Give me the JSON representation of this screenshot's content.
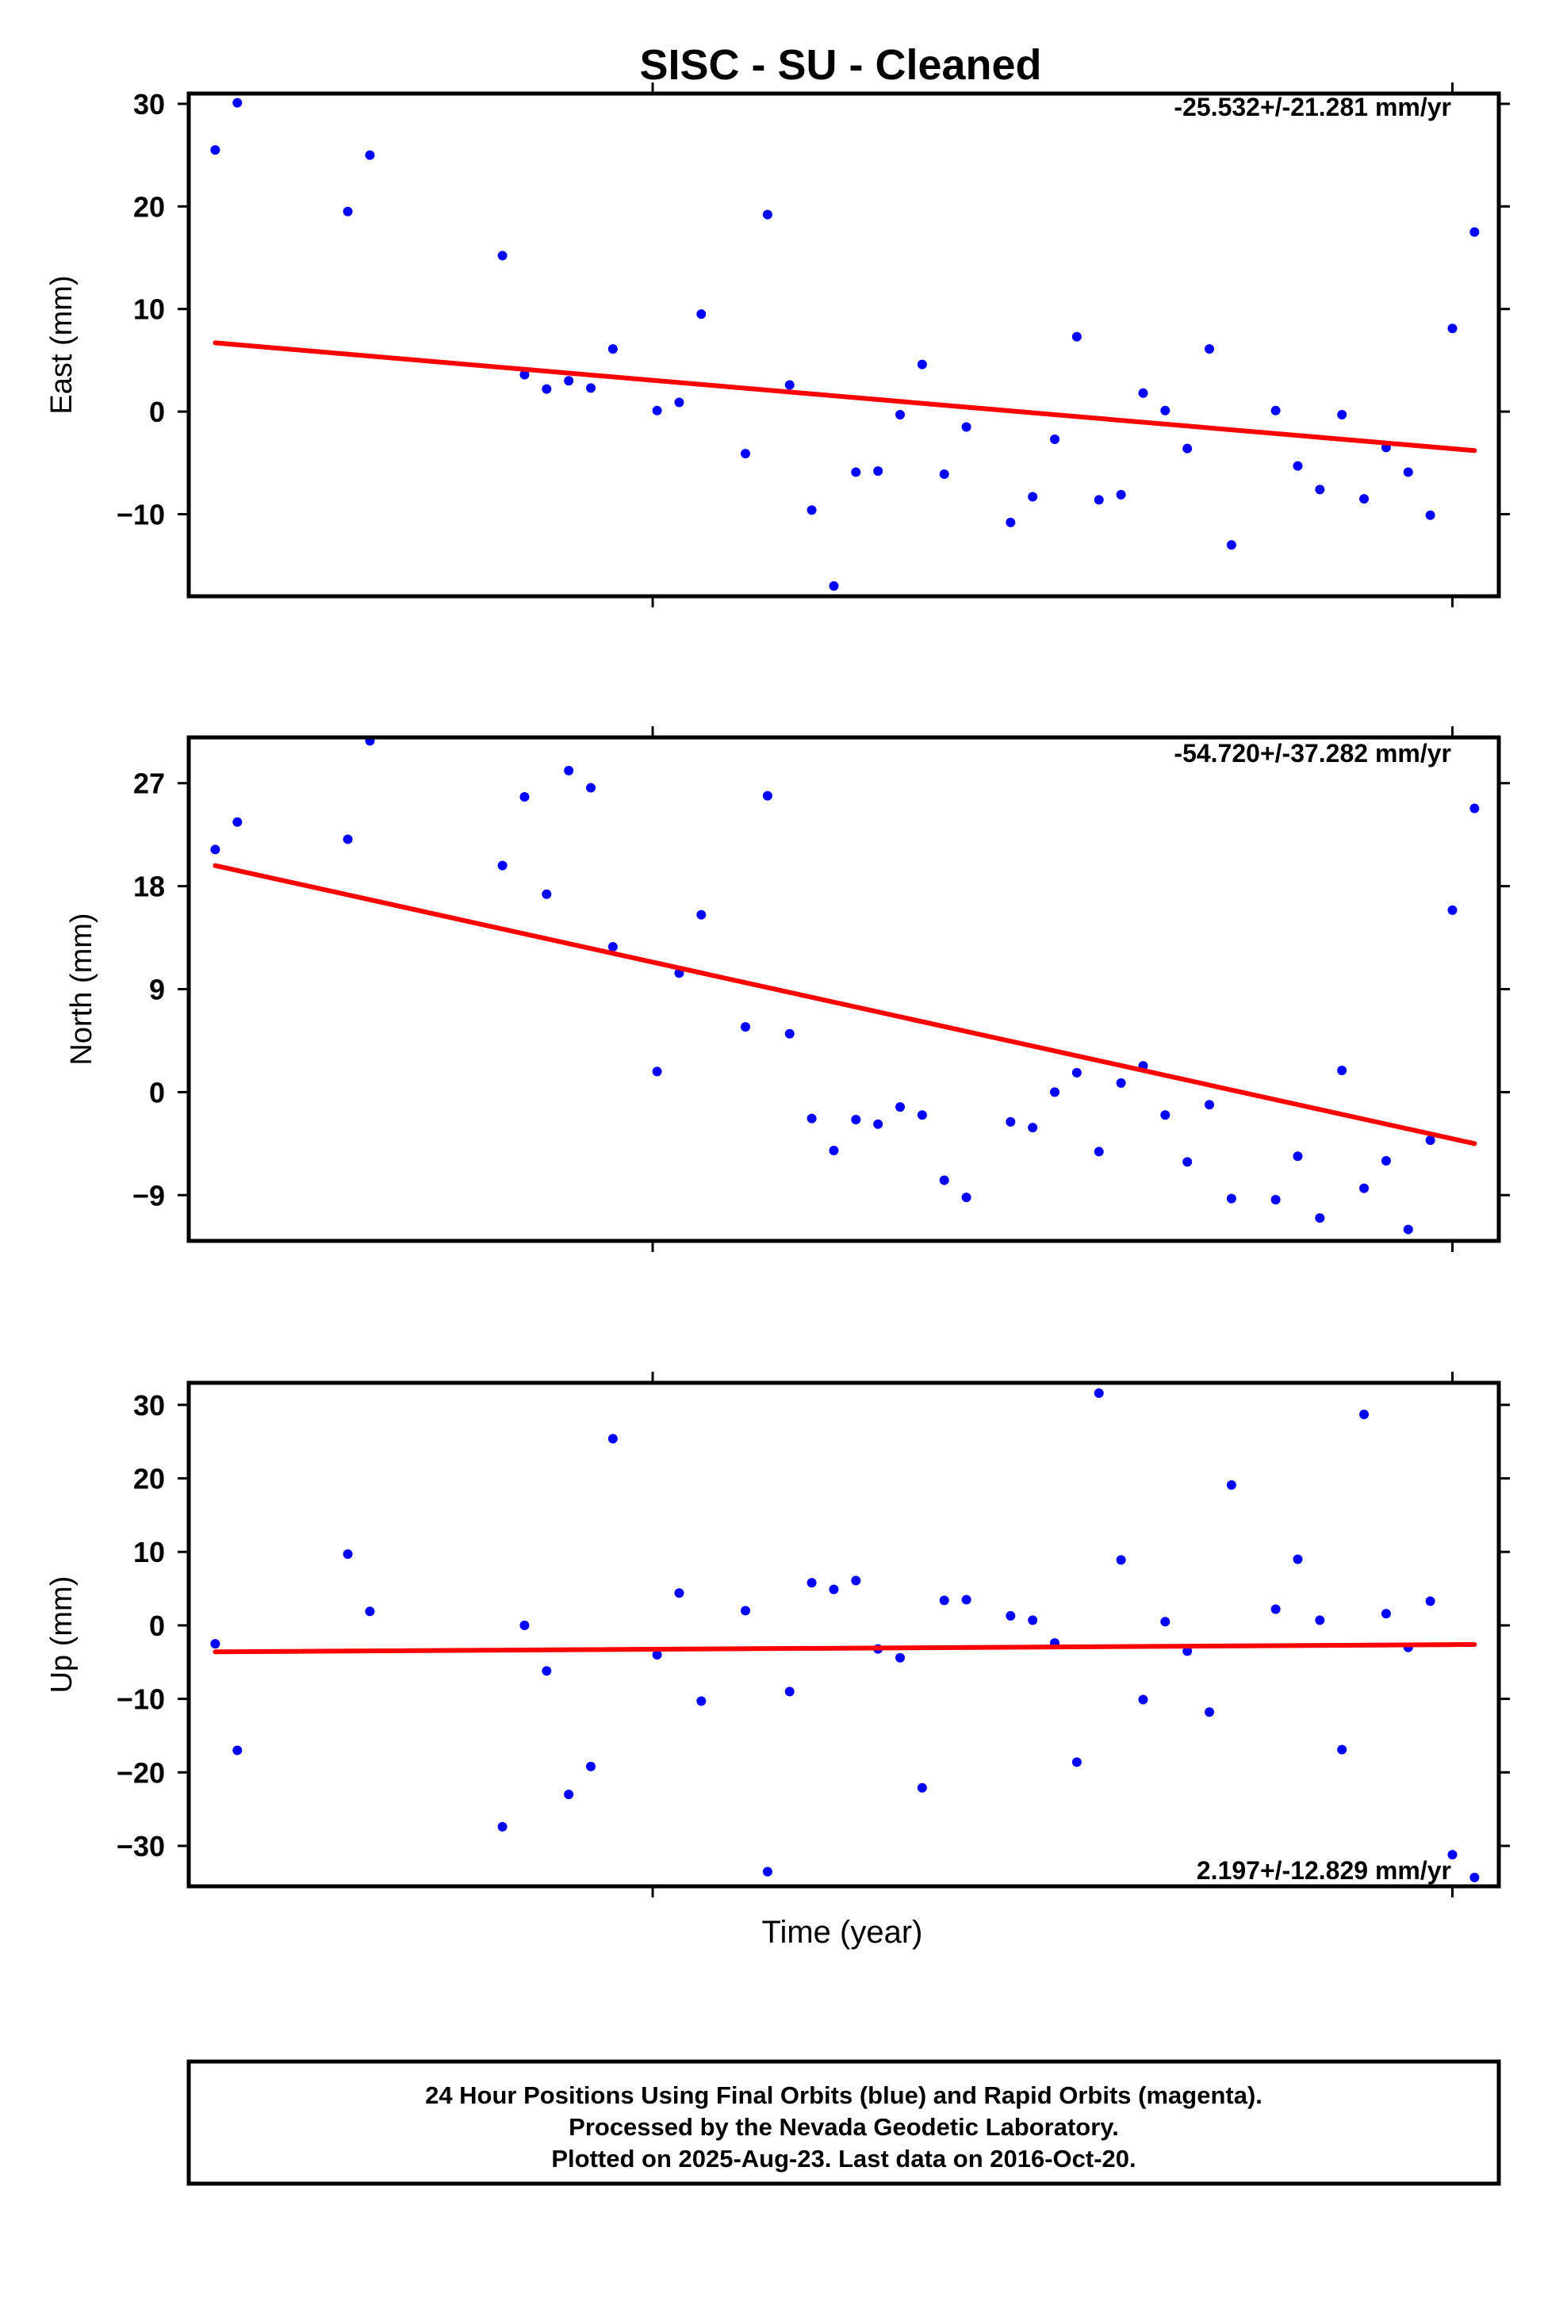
{
  "title": "SISC  - SU - Cleaned",
  "colors": {
    "points": "#0000ff",
    "trend": "#ff0000",
    "frame": "#000000"
  },
  "footer": {
    "lines": [
      "24 Hour Positions Using Final Orbits (blue) and Rapid Orbits (magenta).",
      "Processed by the Nevada Geodetic Laboratory.",
      "Plotted on 2025-Aug-23. Last data on 2016-Oct-20."
    ]
  },
  "chart_data": [
    {
      "type": "scatter",
      "ylabel": "East (mm)",
      "xlabel": "",
      "ylim": [
        -18,
        31
      ],
      "yticks": [
        30,
        20,
        10,
        0,
        -10
      ],
      "ytick_labels": [
        "30",
        "20",
        "10",
        "0",
        "−10"
      ],
      "rate_label": "-25.532+/-21.281 mm/yr",
      "x": [
        0,
        1,
        6,
        7,
        13,
        14,
        15,
        16,
        17,
        18,
        20,
        21,
        22,
        24,
        25,
        26,
        27,
        28,
        29,
        30,
        31,
        32,
        33,
        34,
        36,
        37,
        38,
        39,
        40,
        41,
        42,
        43,
        44,
        45,
        46,
        48,
        49,
        50,
        51,
        52,
        53,
        54,
        55,
        56,
        57
      ],
      "values": [
        25.5,
        30.1,
        19.5,
        25,
        15.2,
        3.6,
        2.2,
        3,
        2.3,
        6.1,
        0.1,
        0.9,
        9.5,
        -4.1,
        19.2,
        2.6,
        -9.6,
        -17,
        -5.9,
        -5.8,
        -0.3,
        4.6,
        -6.1,
        -1.5,
        -10.8,
        -8.3,
        -2.7,
        7.3,
        -8.6,
        -8.1,
        1.8,
        0.1,
        -3.6,
        6.1,
        -13,
        0.1,
        -5.3,
        -7.6,
        -0.3,
        -8.5,
        -3.5,
        -5.9,
        -10.1,
        8.1,
        17.5
      ],
      "trend": [
        [
          0,
          6.7
        ],
        [
          57,
          -3.8
        ]
      ]
    },
    {
      "type": "scatter",
      "ylabel": "North (mm)",
      "xlabel": "",
      "ylim": [
        -13,
        31
      ],
      "yticks": [
        27,
        18,
        9,
        0,
        -9
      ],
      "ytick_labels": [
        "27",
        "18",
        "9",
        "0",
        "−9"
      ],
      "rate_label": "-54.720+/-37.282 mm/yr",
      "x": [
        0,
        1,
        6,
        7,
        13,
        14,
        15,
        16,
        17,
        18,
        20,
        21,
        22,
        24,
        25,
        26,
        27,
        28,
        29,
        30,
        31,
        32,
        33,
        34,
        36,
        37,
        38,
        39,
        40,
        41,
        42,
        43,
        44,
        45,
        46,
        48,
        49,
        50,
        51,
        52,
        53,
        54,
        55,
        56,
        57
      ],
      "values": [
        21.2,
        23.6,
        22.1,
        30.7,
        19.8,
        25.8,
        17.3,
        28.1,
        26.6,
        12.7,
        1.8,
        10.4,
        15.5,
        5.7,
        25.9,
        5.1,
        -2.3,
        -5.1,
        -2.4,
        -2.8,
        -1.3,
        -2,
        -7.7,
        -9.2,
        -2.6,
        -3.1,
        0,
        1.7,
        -5.2,
        0.8,
        2.3,
        -2,
        -6.1,
        -1.1,
        -9.3,
        -9.4,
        -5.6,
        -11,
        1.9,
        -8.4,
        -6,
        -12,
        -4.2,
        15.9,
        24.8
      ],
      "trend": [
        [
          0,
          19.8
        ],
        [
          57,
          -4.5
        ]
      ]
    },
    {
      "type": "scatter",
      "ylabel": "Up (mm)",
      "xlabel": "",
      "ylim": [
        -35.5,
        33
      ],
      "yticks": [
        30,
        20,
        10,
        0,
        -10,
        -20,
        -30
      ],
      "ytick_labels": [
        "30",
        "20",
        "10",
        "0",
        "−10",
        "−20",
        "−30"
      ],
      "rate_label": "2.197+/-12.829 mm/yr",
      "x": [
        0,
        1,
        6,
        7,
        13,
        14,
        15,
        16,
        17,
        18,
        20,
        21,
        22,
        24,
        25,
        26,
        27,
        28,
        29,
        30,
        31,
        32,
        33,
        34,
        36,
        37,
        38,
        39,
        40,
        41,
        42,
        43,
        44,
        45,
        46,
        48,
        49,
        50,
        51,
        52,
        53,
        54,
        55,
        56,
        57
      ],
      "values": [
        -2.5,
        -17,
        9.7,
        1.9,
        -27.4,
        0,
        -6.2,
        -23,
        -19.2,
        25.4,
        -4,
        4.4,
        -10.3,
        2,
        -33.5,
        -9,
        5.8,
        4.9,
        6.1,
        -3.2,
        -4.4,
        -22.1,
        3.4,
        3.5,
        1.3,
        0.7,
        -2.4,
        -18.6,
        31.6,
        8.9,
        -10.1,
        0.5,
        -3.5,
        -11.8,
        19.1,
        2.2,
        9,
        0.7,
        -16.9,
        28.7,
        1.6,
        -3,
        3.3,
        -31.2,
        -34.3
      ],
      "trend": [
        [
          0,
          -3.6
        ],
        [
          57,
          -2.6
        ]
      ]
    }
  ],
  "x_axis": {
    "label": "Time (year)"
  }
}
